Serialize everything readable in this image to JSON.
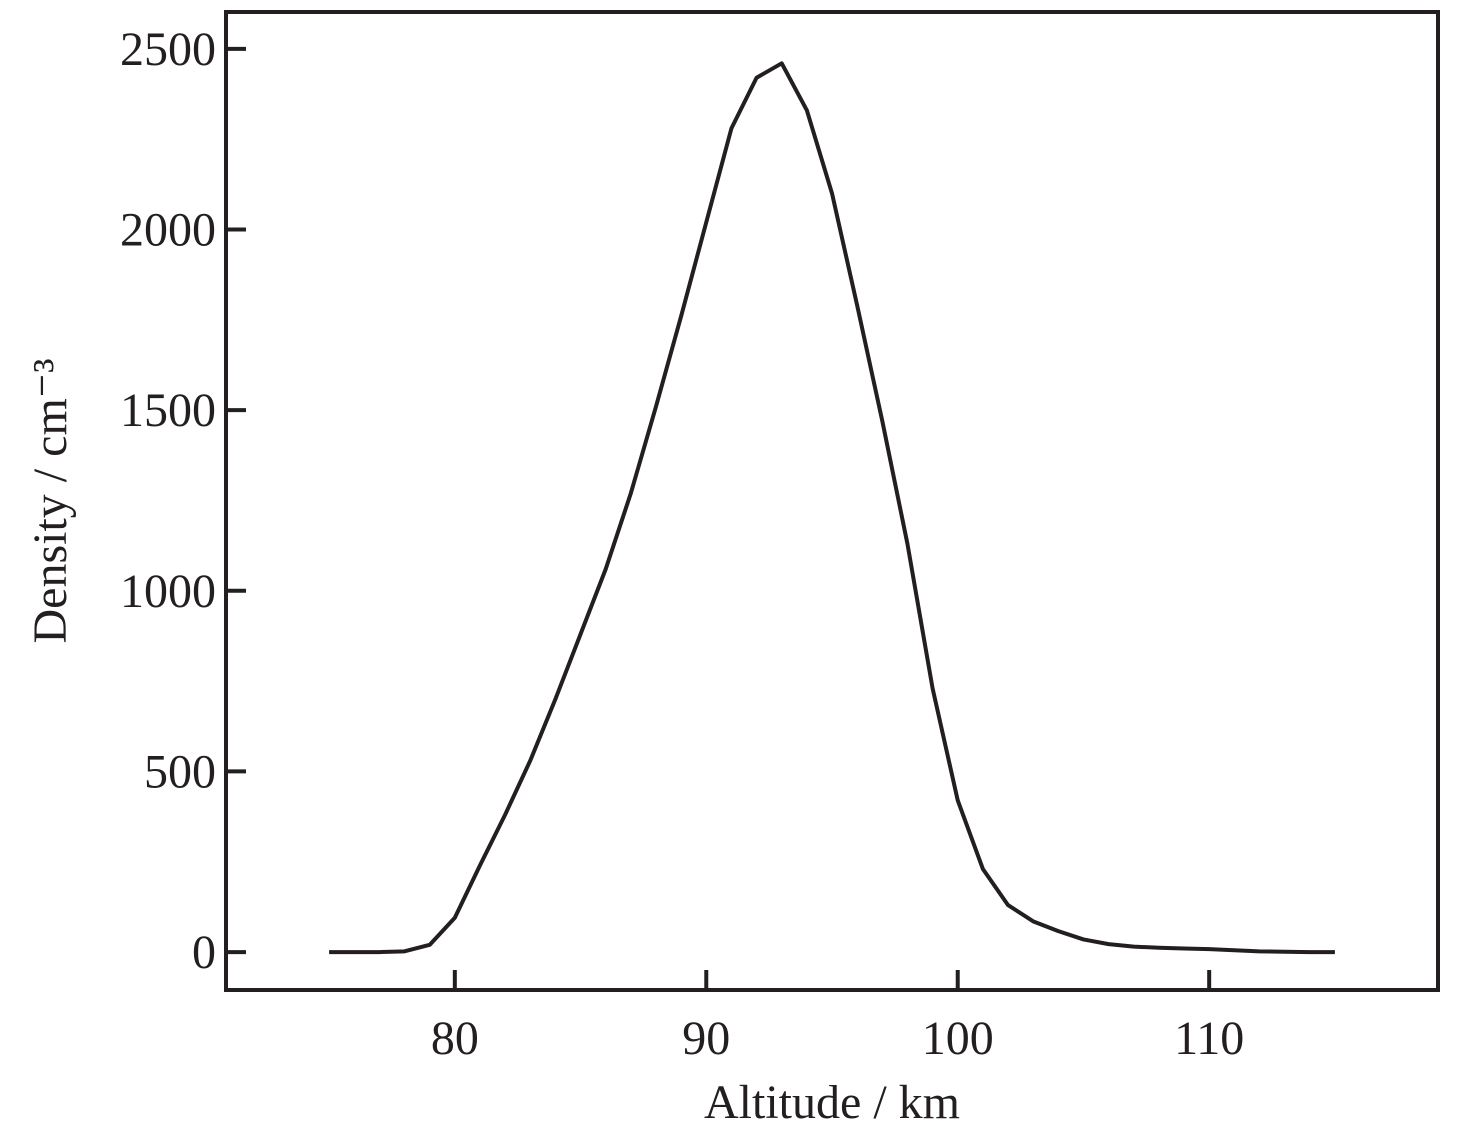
{
  "chart_data": {
    "type": "line",
    "x_label": "Altitude / km",
    "y_label": "Density / cm⁻³",
    "x": [
      75,
      76,
      77,
      78,
      79,
      80,
      81,
      82,
      83,
      84,
      85,
      86,
      87,
      88,
      89,
      90,
      91,
      92,
      93,
      94,
      95,
      96,
      97,
      98,
      99,
      100,
      101,
      102,
      103,
      104,
      105,
      106,
      107,
      108,
      109,
      110,
      111,
      112,
      113,
      114,
      115
    ],
    "series": [
      {
        "color": "#231f20",
        "values": [
          0,
          0,
          0,
          2,
          20,
          95,
          240,
          380,
          530,
          700,
          880,
          1060,
          1270,
          1510,
          1760,
          2020,
          2280,
          2420,
          2460,
          2330,
          2100,
          1790,
          1470,
          1130,
          730,
          420,
          230,
          130,
          85,
          58,
          35,
          22,
          15,
          12,
          10,
          8,
          5,
          2,
          1,
          0,
          0
        ]
      }
    ],
    "xlim": [
      70.9,
      119.1
    ],
    "xticks": [
      80,
      90,
      100,
      110
    ],
    "ylim": [
      -105,
      2602
    ],
    "yticks": [
      0,
      500,
      1000,
      1500,
      2000,
      2500
    ],
    "grid": false
  }
}
